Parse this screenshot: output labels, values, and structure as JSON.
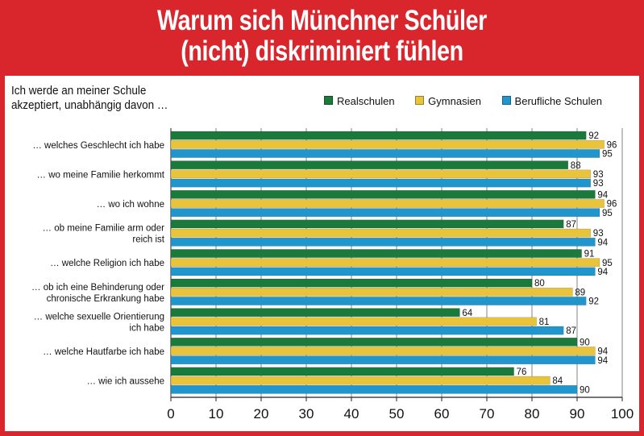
{
  "title_lines": [
    "Warum sich Münchner Schüler",
    "(nicht) diskriminiert fühlen"
  ],
  "colors": {
    "frame": "#d8262c",
    "Realschulen": "#1a7a3c",
    "Gymnasien": "#e9c43b",
    "Berufliche Schulen": "#2196cc"
  },
  "chart_data": {
    "type": "bar",
    "orientation": "horizontal",
    "title": "Warum sich Münchner Schüler (nicht) diskriminiert fühlen",
    "subtitle_lines": [
      "Ich werde an meiner Schule",
      "akzeptiert, unabhängig davon …"
    ],
    "categories": [
      [
        "… welches Geschlecht ich habe"
      ],
      [
        "… wo meine Familie herkommt"
      ],
      [
        "… wo ich wohne"
      ],
      [
        "… ob meine Familie arm oder",
        "reich ist"
      ],
      [
        "… welche Religion ich habe"
      ],
      [
        "… ob ich eine Behinderung oder",
        "chronische Erkrankung habe"
      ],
      [
        "… welche sexuelle Orientierung",
        "ich habe"
      ],
      [
        "… welche Hautfarbe ich habe"
      ],
      [
        "… wie ich aussehe"
      ]
    ],
    "series": [
      {
        "name": "Realschulen",
        "values": [
          92,
          88,
          94,
          87,
          91,
          80,
          64,
          90,
          76
        ]
      },
      {
        "name": "Gymnasien",
        "values": [
          96,
          93,
          96,
          93,
          95,
          89,
          81,
          94,
          84
        ]
      },
      {
        "name": "Berufliche Schulen",
        "values": [
          95,
          93,
          95,
          94,
          94,
          92,
          87,
          94,
          90
        ]
      }
    ],
    "xlim": [
      0,
      100
    ],
    "xticks": [
      0,
      10,
      20,
      30,
      40,
      50,
      60,
      70,
      80,
      90,
      100
    ],
    "grid": true,
    "legend_position": "top-right",
    "data_labels": true
  }
}
